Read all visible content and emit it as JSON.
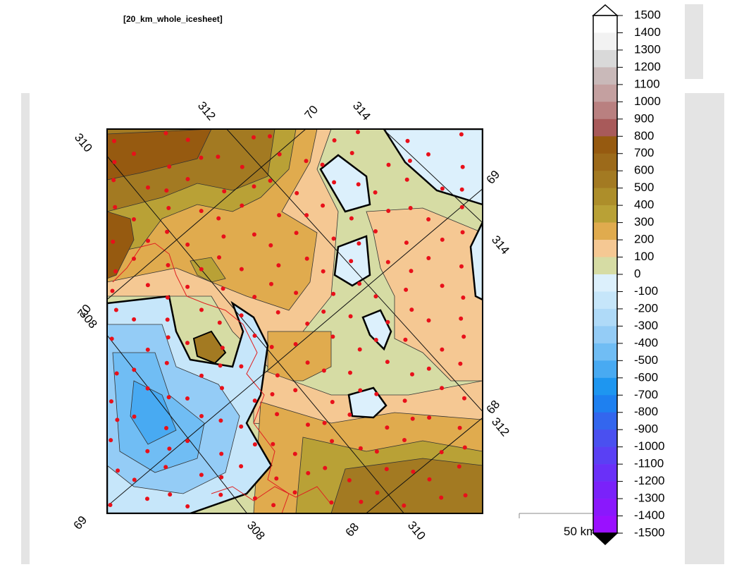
{
  "title": "[20_km_whole_icesheet]",
  "graticule_labels": [
    "312",
    "70",
    "314",
    "310",
    "69",
    "314",
    "70",
    "308",
    "68",
    "312",
    "69",
    "308",
    "68",
    "310"
  ],
  "scale_bar": "50 km",
  "colorbar": {
    "labels": [
      1500,
      1400,
      1300,
      1200,
      1100,
      1000,
      900,
      800,
      700,
      600,
      500,
      400,
      300,
      200,
      100,
      0,
      -100,
      -200,
      -300,
      -400,
      -500,
      -600,
      -700,
      -800,
      -900,
      -1000,
      -1100,
      -1200,
      -1300,
      -1400,
      -1500
    ],
    "colors": [
      "#ffffff",
      "#ffffff",
      "#f2f2f2",
      "#d9d9d9",
      "#c9b9b9",
      "#c4a0a0",
      "#b98080",
      "#a85a5a",
      "#965a10",
      "#9c6a1a",
      "#a37a22",
      "#ad8e2a",
      "#b9a136",
      "#e0ab4e",
      "#f5c893",
      "#d6dca4",
      "#dcf0fc",
      "#c6e6fa",
      "#afdaf8",
      "#94ccf6",
      "#70bdf4",
      "#48aaf2",
      "#1e96f0",
      "#1e80f0",
      "#3366ee",
      "#4a50f0",
      "#5a40f4",
      "#6a30f8",
      "#7a22fa",
      "#8a18fc",
      "#9a10ff",
      "#000000"
    ]
  }
}
